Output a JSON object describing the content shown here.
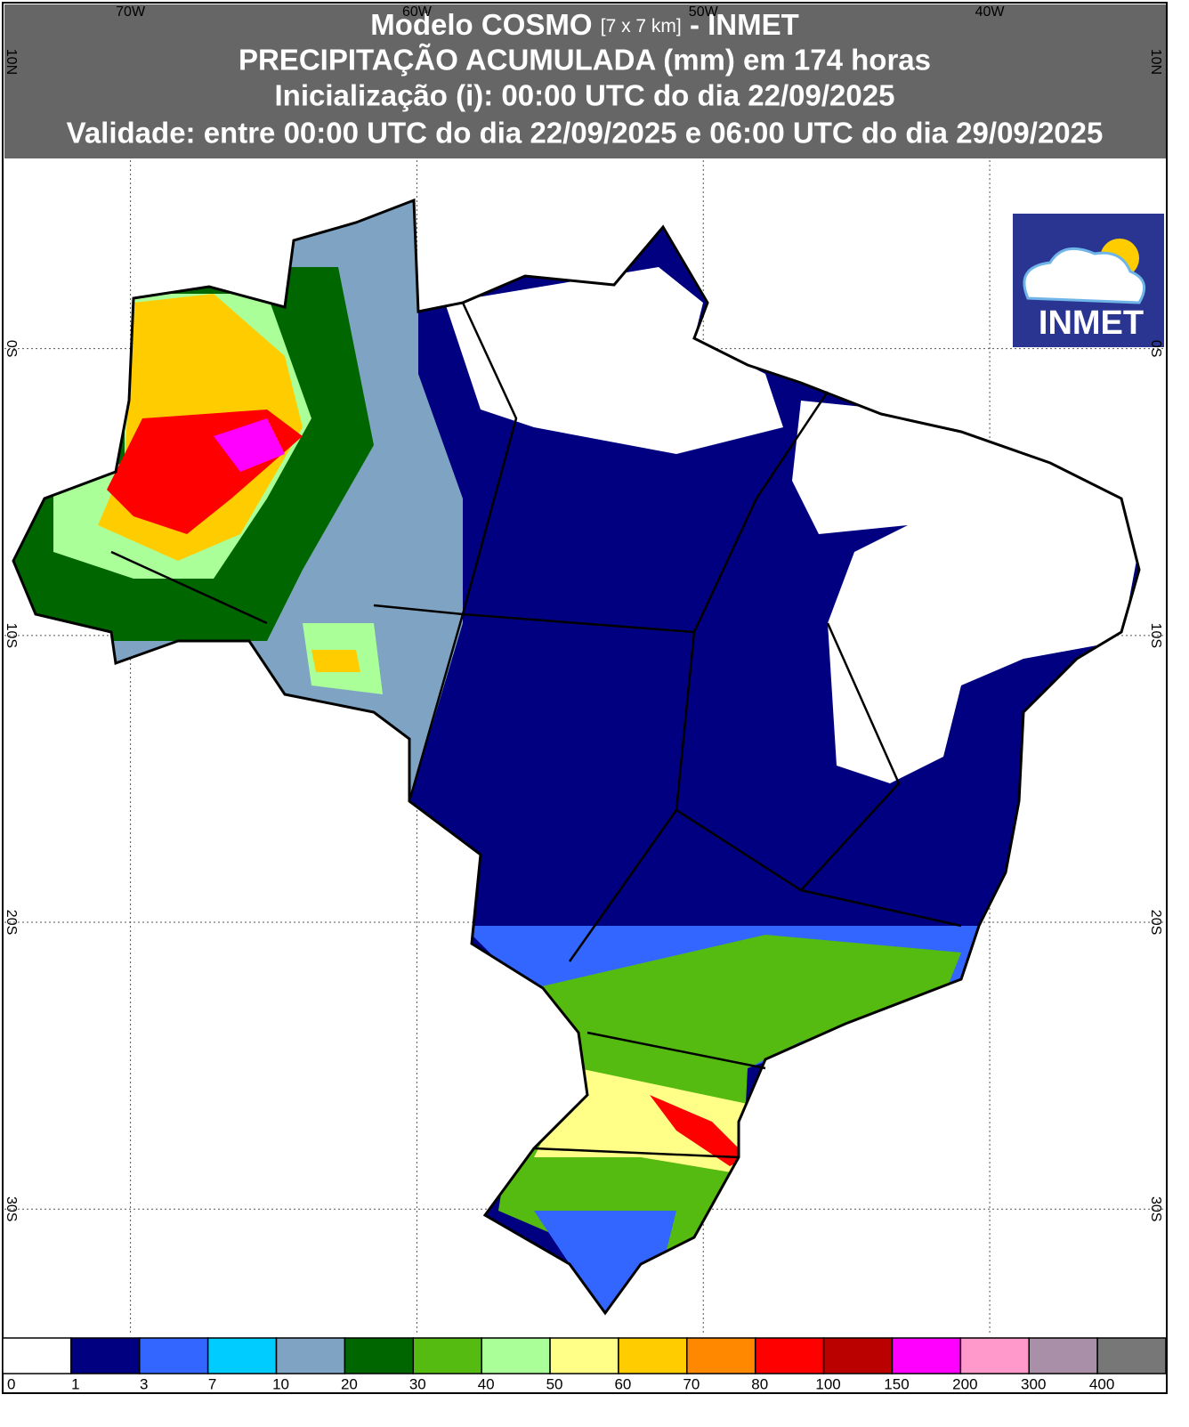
{
  "header": {
    "title_main": "Modelo COSMO",
    "title_resolution": "[7 x 7 km]",
    "title_suffix": "- INMET",
    "line2": "PRECIPITAÇÃO ACUMULADA (mm) em 174 horas",
    "line3": "Inicialização (i): 00:00 UTC do dia 22/09/2025",
    "line4": "Validade: entre 00:00 UTC do dia 22/09/2025 e 06:00 UTC do dia 29/09/2025"
  },
  "logo": {
    "text": "INMET"
  },
  "map": {
    "xlim": [
      -74.4,
      -33.85
    ],
    "ylim": [
      -34.4,
      12.0
    ],
    "lon_ticks": [
      {
        "value": -70,
        "label": "70W"
      },
      {
        "value": -60,
        "label": "60W"
      },
      {
        "value": -50,
        "label": "50W"
      },
      {
        "value": -40,
        "label": "40W"
      }
    ],
    "lat_ticks": [
      {
        "value": 10,
        "label": "10N"
      },
      {
        "value": 0,
        "label": "0S"
      },
      {
        "value": -10,
        "label": "10S"
      },
      {
        "value": -20,
        "label": "20S"
      },
      {
        "value": -30,
        "label": "30S"
      }
    ]
  },
  "legend": {
    "levels": [
      0,
      1,
      3,
      7,
      10,
      20,
      30,
      40,
      50,
      60,
      70,
      80,
      100,
      150,
      200,
      300,
      400
    ],
    "colors": [
      "#ffffff",
      "#000080",
      "#3366ff",
      "#00ccff",
      "#7fa3c2",
      "#006600",
      "#55bb11",
      "#aaff99",
      "#ffff88",
      "#ffcc00",
      "#ff8800",
      "#ff0000",
      "#bb0000",
      "#ff00ff",
      "#ff99cc",
      "#aa8fa8",
      "#777777"
    ]
  }
}
